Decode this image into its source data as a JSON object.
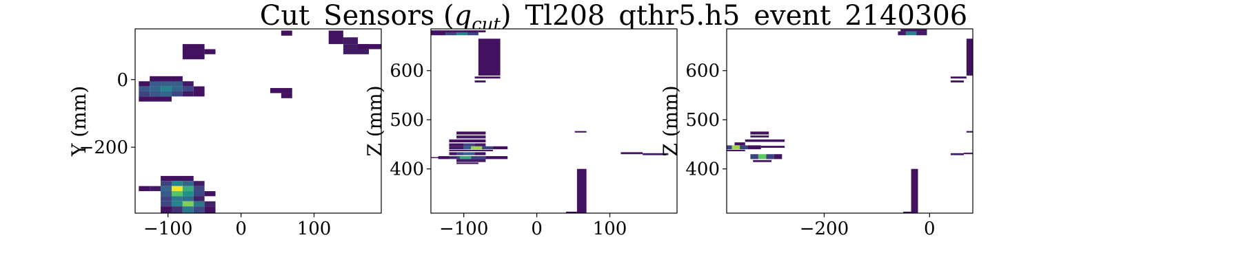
{
  "figure": {
    "title_main": "Cut_Sensors (",
    "title_q": "q",
    "title_sub": "cut",
    "title_rest": ")_Tl208_qthr5.h5_event_2140306"
  },
  "colormap": [
    "#440154",
    "#3b528b",
    "#21918c",
    "#5ec962",
    "#fde725"
  ],
  "chart_data": [
    {
      "type": "heatmap",
      "title": "",
      "xlabel": "",
      "ylabel": "Y (mm)",
      "xlim": [
        -145,
        192
      ],
      "ylim": [
        -395,
        150
      ],
      "xticks": [
        -100,
        0,
        100
      ],
      "xtick_labels": [
        "−100",
        "0",
        "100"
      ],
      "yticks": [
        0,
        -200
      ],
      "ytick_labels": [
        "0",
        "−200"
      ],
      "cells": [
        {
          "x0": -80,
          "x1": -50,
          "y0": 60,
          "y1": 105,
          "v": 0.05
        },
        {
          "x0": -50,
          "x1": -35,
          "y0": 75,
          "y1": 90,
          "v": 0.05
        },
        {
          "x0": -125,
          "x1": -95,
          "y0": -10,
          "y1": 10,
          "v": 0.05
        },
        {
          "x0": -95,
          "x1": -80,
          "y0": -10,
          "y1": 10,
          "v": 0.05
        },
        {
          "x0": -140,
          "x1": -125,
          "y0": -20,
          "y1": -5,
          "v": 0.05
        },
        {
          "x0": -125,
          "x1": -110,
          "y0": -20,
          "y1": -5,
          "v": 0.28
        },
        {
          "x0": -110,
          "x1": -95,
          "y0": -20,
          "y1": -5,
          "v": 0.3
        },
        {
          "x0": -95,
          "x1": -80,
          "y0": -20,
          "y1": -5,
          "v": 0.3
        },
        {
          "x0": -80,
          "x1": -65,
          "y0": -20,
          "y1": -5,
          "v": 0.08
        },
        {
          "x0": -140,
          "x1": -125,
          "y0": -35,
          "y1": -20,
          "v": 0.28
        },
        {
          "x0": -125,
          "x1": -110,
          "y0": -35,
          "y1": -20,
          "v": 0.33
        },
        {
          "x0": -110,
          "x1": -95,
          "y0": -35,
          "y1": -20,
          "v": 0.45
        },
        {
          "x0": -95,
          "x1": -80,
          "y0": -35,
          "y1": -20,
          "v": 0.33
        },
        {
          "x0": -80,
          "x1": -65,
          "y0": -35,
          "y1": -20,
          "v": 0.22
        },
        {
          "x0": -65,
          "x1": -50,
          "y0": -35,
          "y1": -20,
          "v": 0.05
        },
        {
          "x0": -140,
          "x1": -125,
          "y0": -50,
          "y1": -35,
          "v": 0.2
        },
        {
          "x0": -125,
          "x1": -110,
          "y0": -50,
          "y1": -35,
          "v": 0.28
        },
        {
          "x0": -110,
          "x1": -95,
          "y0": -50,
          "y1": -35,
          "v": 0.33
        },
        {
          "x0": -95,
          "x1": -80,
          "y0": -50,
          "y1": -35,
          "v": 0.22
        },
        {
          "x0": -80,
          "x1": -65,
          "y0": -50,
          "y1": -35,
          "v": 0.08
        },
        {
          "x0": -65,
          "x1": -50,
          "y0": -50,
          "y1": -35,
          "v": 0.05
        },
        {
          "x0": -140,
          "x1": -95,
          "y0": -65,
          "y1": -50,
          "v": 0.05
        },
        {
          "x0": 55,
          "x1": 70,
          "y0": 130,
          "y1": 145,
          "v": 0.05
        },
        {
          "x0": 120,
          "x1": 140,
          "y0": 105,
          "y1": 145,
          "v": 0.05
        },
        {
          "x0": 140,
          "x1": 160,
          "y0": 105,
          "y1": 125,
          "v": 0.08
        },
        {
          "x0": 140,
          "x1": 175,
          "y0": 75,
          "y1": 105,
          "v": 0.08
        },
        {
          "x0": 160,
          "x1": 192,
          "y0": 90,
          "y1": 105,
          "v": 0.05
        },
        {
          "x0": 40,
          "x1": 70,
          "y0": -40,
          "y1": -25,
          "v": 0.05
        },
        {
          "x0": 55,
          "x1": 70,
          "y0": -55,
          "y1": -40,
          "v": 0.05
        },
        {
          "x0": -110,
          "x1": -65,
          "y0": -300,
          "y1": -285,
          "v": 0.05
        },
        {
          "x0": -140,
          "x1": -125,
          "y0": -330,
          "y1": -315,
          "v": 0.05
        },
        {
          "x0": -110,
          "x1": -95,
          "y0": -315,
          "y1": -300,
          "v": 0.2
        },
        {
          "x0": -95,
          "x1": -80,
          "y0": -315,
          "y1": -300,
          "v": 0.45
        },
        {
          "x0": -80,
          "x1": -65,
          "y0": -315,
          "y1": -300,
          "v": 0.33
        },
        {
          "x0": -65,
          "x1": -50,
          "y0": -315,
          "y1": -300,
          "v": 0.08
        },
        {
          "x0": -125,
          "x1": -110,
          "y0": -330,
          "y1": -315,
          "v": 0.08
        },
        {
          "x0": -110,
          "x1": -95,
          "y0": -330,
          "y1": -315,
          "v": 0.33
        },
        {
          "x0": -95,
          "x1": -80,
          "y0": -330,
          "y1": -315,
          "v": 0.98
        },
        {
          "x0": -80,
          "x1": -65,
          "y0": -330,
          "y1": -315,
          "v": 0.62
        },
        {
          "x0": -65,
          "x1": -50,
          "y0": -330,
          "y1": -315,
          "v": 0.22
        },
        {
          "x0": -110,
          "x1": -95,
          "y0": -345,
          "y1": -330,
          "v": 0.28
        },
        {
          "x0": -95,
          "x1": -80,
          "y0": -345,
          "y1": -330,
          "v": 0.72
        },
        {
          "x0": -80,
          "x1": -65,
          "y0": -345,
          "y1": -330,
          "v": 0.5
        },
        {
          "x0": -65,
          "x1": -50,
          "y0": -345,
          "y1": -330,
          "v": 0.22
        },
        {
          "x0": -50,
          "x1": -35,
          "y0": -345,
          "y1": -330,
          "v": 0.05
        },
        {
          "x0": -110,
          "x1": -95,
          "y0": -360,
          "y1": -345,
          "v": 0.2
        },
        {
          "x0": -95,
          "x1": -80,
          "y0": -360,
          "y1": -345,
          "v": 0.4
        },
        {
          "x0": -80,
          "x1": -65,
          "y0": -360,
          "y1": -345,
          "v": 0.35
        },
        {
          "x0": -65,
          "x1": -50,
          "y0": -360,
          "y1": -345,
          "v": 0.1
        },
        {
          "x0": -110,
          "x1": -95,
          "y0": -375,
          "y1": -360,
          "v": 0.22
        },
        {
          "x0": -95,
          "x1": -80,
          "y0": -375,
          "y1": -360,
          "v": 0.45
        },
        {
          "x0": -80,
          "x1": -65,
          "y0": -375,
          "y1": -360,
          "v": 0.8
        },
        {
          "x0": -65,
          "x1": -50,
          "y0": -375,
          "y1": -360,
          "v": 0.4
        },
        {
          "x0": -50,
          "x1": -35,
          "y0": -375,
          "y1": -360,
          "v": 0.1
        },
        {
          "x0": -110,
          "x1": -95,
          "y0": -395,
          "y1": -375,
          "v": 0.05
        },
        {
          "x0": -95,
          "x1": -80,
          "y0": -395,
          "y1": -375,
          "v": 0.15
        },
        {
          "x0": -80,
          "x1": -65,
          "y0": -395,
          "y1": -375,
          "v": 0.4
        },
        {
          "x0": -65,
          "x1": -50,
          "y0": -395,
          "y1": -375,
          "v": 0.22
        },
        {
          "x0": -50,
          "x1": -35,
          "y0": -395,
          "y1": -375,
          "v": 0.05
        }
      ]
    },
    {
      "type": "heatmap",
      "title": "",
      "xlabel": "",
      "ylabel": "Z (mm)",
      "xlim": [
        -145,
        192
      ],
      "ylim": [
        310,
        685
      ],
      "xticks": [
        -100,
        0,
        100
      ],
      "xtick_labels": [
        "−100",
        "0",
        "100"
      ],
      "yticks": [
        400,
        500,
        600
      ],
      "ytick_labels": [
        "400",
        "500",
        "600"
      ],
      "cells": [
        {
          "x0": -145,
          "x1": -125,
          "y0": 672,
          "y1": 678,
          "v": 0.05
        },
        {
          "x0": -125,
          "x1": -110,
          "y0": 672,
          "y1": 678,
          "v": 0.2
        },
        {
          "x0": -110,
          "x1": -95,
          "y0": 672,
          "y1": 678,
          "v": 0.45
        },
        {
          "x0": -95,
          "x1": -80,
          "y0": 672,
          "y1": 678,
          "v": 0.2
        },
        {
          "x0": -145,
          "x1": -80,
          "y0": 678,
          "y1": 682,
          "v": 0.05
        },
        {
          "x0": -80,
          "x1": -70,
          "y0": 678,
          "y1": 682,
          "v": 0.05
        },
        {
          "x0": -80,
          "x1": -50,
          "y0": 590,
          "y1": 665,
          "v": 0.05
        },
        {
          "x0": -85,
          "x1": -50,
          "y0": 584,
          "y1": 588,
          "v": 0.05
        },
        {
          "x0": -85,
          "x1": -70,
          "y0": 576,
          "y1": 580,
          "v": 0.05
        },
        {
          "x0": -110,
          "x1": -70,
          "y0": 470,
          "y1": 476,
          "v": 0.05
        },
        {
          "x0": -110,
          "x1": -70,
          "y0": 462,
          "y1": 468,
          "v": 0.08
        },
        {
          "x0": -120,
          "x1": -70,
          "y0": 454,
          "y1": 460,
          "v": 0.05
        },
        {
          "x0": -120,
          "x1": -100,
          "y0": 446,
          "y1": 452,
          "v": 0.05
        },
        {
          "x0": -100,
          "x1": -85,
          "y0": 446,
          "y1": 452,
          "v": 0.2
        },
        {
          "x0": -85,
          "x1": -70,
          "y0": 446,
          "y1": 452,
          "v": 0.08
        },
        {
          "x0": -120,
          "x1": -100,
          "y0": 440,
          "y1": 446,
          "v": 0.08
        },
        {
          "x0": -100,
          "x1": -90,
          "y0": 440,
          "y1": 446,
          "v": 0.3
        },
        {
          "x0": -90,
          "x1": -75,
          "y0": 440,
          "y1": 446,
          "v": 0.85
        },
        {
          "x0": -75,
          "x1": -60,
          "y0": 440,
          "y1": 446,
          "v": 0.2
        },
        {
          "x0": -60,
          "x1": -40,
          "y0": 440,
          "y1": 446,
          "v": 0.05
        },
        {
          "x0": -120,
          "x1": -60,
          "y0": 436,
          "y1": 439,
          "v": 0.05
        },
        {
          "x0": -120,
          "x1": -110,
          "y0": 428,
          "y1": 434,
          "v": 0.05
        },
        {
          "x0": -110,
          "x1": -100,
          "y0": 428,
          "y1": 434,
          "v": 0.2
        },
        {
          "x0": -100,
          "x1": -85,
          "y0": 428,
          "y1": 434,
          "v": 0.3
        },
        {
          "x0": -85,
          "x1": -70,
          "y0": 428,
          "y1": 434,
          "v": 0.05
        },
        {
          "x0": -135,
          "x1": -120,
          "y0": 420,
          "y1": 426,
          "v": 0.05
        },
        {
          "x0": -120,
          "x1": -105,
          "y0": 420,
          "y1": 426,
          "v": 0.2
        },
        {
          "x0": -105,
          "x1": -90,
          "y0": 420,
          "y1": 426,
          "v": 0.6
        },
        {
          "x0": -90,
          "x1": -70,
          "y0": 420,
          "y1": 426,
          "v": 0.2
        },
        {
          "x0": -70,
          "x1": -40,
          "y0": 420,
          "y1": 426,
          "v": 0.05
        },
        {
          "x0": -145,
          "x1": -110,
          "y0": 422,
          "y1": 424,
          "v": 0.05
        },
        {
          "x0": -110,
          "x1": -70,
          "y0": 414,
          "y1": 420,
          "v": 0.08
        },
        {
          "x0": -110,
          "x1": -80,
          "y0": 410,
          "y1": 413,
          "v": 0.05
        },
        {
          "x0": 52,
          "x1": 68,
          "y0": 474,
          "y1": 477,
          "v": 0.05
        },
        {
          "x0": 115,
          "x1": 145,
          "y0": 430,
          "y1": 434,
          "v": 0.05
        },
        {
          "x0": 145,
          "x1": 180,
          "y0": 428,
          "y1": 432,
          "v": 0.08
        },
        {
          "x0": 55,
          "x1": 68,
          "y0": 310,
          "y1": 400,
          "v": 0.05
        },
        {
          "x0": 40,
          "x1": 55,
          "y0": 310,
          "y1": 313,
          "v": 0.05
        }
      ]
    },
    {
      "type": "heatmap",
      "title": "",
      "xlabel": "",
      "ylabel": "Z (mm)",
      "xlim": [
        -385,
        82
      ],
      "ylim": [
        310,
        685
      ],
      "xticks": [
        -200,
        0
      ],
      "xtick_labels": [
        "−200",
        "0"
      ],
      "yticks": [
        400,
        500,
        600
      ],
      "ytick_labels": [
        "400",
        "500",
        "600"
      ],
      "cells": [
        {
          "x0": -45,
          "x1": -25,
          "y0": 672,
          "y1": 680,
          "v": 0.45
        },
        {
          "x0": -60,
          "x1": -45,
          "y0": 672,
          "y1": 680,
          "v": 0.08
        },
        {
          "x0": -25,
          "x1": -5,
          "y0": 672,
          "y1": 680,
          "v": 0.08
        },
        {
          "x0": -55,
          "x1": -5,
          "y0": 680,
          "y1": 684,
          "v": 0.05
        },
        {
          "x0": 70,
          "x1": 82,
          "y0": 590,
          "y1": 665,
          "v": 0.05
        },
        {
          "x0": 40,
          "x1": 70,
          "y0": 584,
          "y1": 588,
          "v": 0.05
        },
        {
          "x0": 40,
          "x1": 65,
          "y0": 576,
          "y1": 580,
          "v": 0.05
        },
        {
          "x0": -340,
          "x1": -305,
          "y0": 470,
          "y1": 476,
          "v": 0.05
        },
        {
          "x0": -340,
          "x1": -305,
          "y0": 464,
          "y1": 468,
          "v": 0.08
        },
        {
          "x0": -350,
          "x1": -275,
          "y0": 455,
          "y1": 460,
          "v": 0.05
        },
        {
          "x0": -370,
          "x1": -350,
          "y0": 448,
          "y1": 454,
          "v": 0.05
        },
        {
          "x0": -385,
          "x1": -375,
          "y0": 440,
          "y1": 448,
          "v": 0.2
        },
        {
          "x0": -375,
          "x1": -360,
          "y0": 440,
          "y1": 448,
          "v": 0.85
        },
        {
          "x0": -360,
          "x1": -345,
          "y0": 440,
          "y1": 448,
          "v": 0.2
        },
        {
          "x0": -345,
          "x1": -320,
          "y0": 440,
          "y1": 448,
          "v": 0.05
        },
        {
          "x0": -320,
          "x1": -275,
          "y0": 443,
          "y1": 447,
          "v": 0.05
        },
        {
          "x0": -385,
          "x1": -350,
          "y0": 436,
          "y1": 439,
          "v": 0.05
        },
        {
          "x0": -340,
          "x1": -325,
          "y0": 420,
          "y1": 430,
          "v": 0.2
        },
        {
          "x0": -325,
          "x1": -310,
          "y0": 420,
          "y1": 430,
          "v": 0.75
        },
        {
          "x0": -310,
          "x1": -295,
          "y0": 420,
          "y1": 430,
          "v": 0.2
        },
        {
          "x0": -295,
          "x1": -280,
          "y0": 420,
          "y1": 430,
          "v": 0.05
        },
        {
          "x0": -335,
          "x1": -300,
          "y0": 414,
          "y1": 418,
          "v": 0.05
        },
        {
          "x0": 40,
          "x1": 65,
          "y0": 428,
          "y1": 432,
          "v": 0.08
        },
        {
          "x0": 65,
          "x1": 82,
          "y0": 430,
          "y1": 433,
          "v": 0.05
        },
        {
          "x0": 70,
          "x1": 82,
          "y0": 474,
          "y1": 477,
          "v": 0.05
        },
        {
          "x0": -35,
          "x1": -22,
          "y0": 310,
          "y1": 400,
          "v": 0.05
        },
        {
          "x0": -50,
          "x1": -35,
          "y0": 310,
          "y1": 313,
          "v": 0.05
        }
      ]
    }
  ]
}
